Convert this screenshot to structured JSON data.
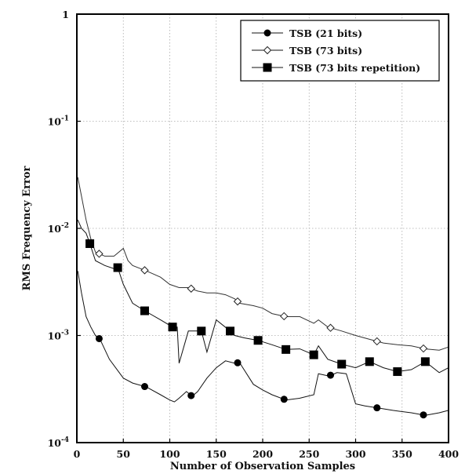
{
  "chart_data": {
    "type": "line",
    "title": "",
    "xlabel": "Number of Observation Samples",
    "ylabel": "RMS Frequency Error",
    "xlim": [
      0,
      400
    ],
    "ylim": [
      0.0001,
      1
    ],
    "yscale": "log",
    "grid": true,
    "legend_position": "top-right",
    "x_ticks": [
      "0",
      "50",
      "100",
      "150",
      "200",
      "250",
      "300",
      "350",
      "400"
    ],
    "y_ticks": [
      {
        "base": "10",
        "exp": "-4"
      },
      {
        "base": "10",
        "exp": "-3"
      },
      {
        "base": "10",
        "exp": "-2"
      },
      {
        "base": "10",
        "exp": "-1"
      },
      {
        "base": "1",
        "exp": ""
      }
    ],
    "series": [
      {
        "name": "TSB (21 bits)",
        "marker": "circle",
        "x": [
          1,
          5,
          10,
          15,
          20,
          25,
          35,
          50,
          60,
          75,
          90,
          100,
          105,
          110,
          118,
          124,
          130,
          140,
          150,
          160,
          170,
          175,
          190,
          200,
          210,
          225,
          240,
          255,
          260,
          270,
          275,
          280,
          290,
          300,
          310,
          325,
          340,
          360,
          375,
          390,
          400
        ],
        "y": [
          0.004,
          0.0025,
          0.0015,
          0.0012,
          0.001,
          0.00092,
          0.0006,
          0.0004,
          0.00036,
          0.00033,
          0.00028,
          0.00025,
          0.00024,
          0.00026,
          0.0003,
          0.00027,
          0.0003,
          0.0004,
          0.0005,
          0.00058,
          0.00055,
          0.00056,
          0.00035,
          0.00031,
          0.00028,
          0.00025,
          0.00026,
          0.00028,
          0.00044,
          0.00042,
          0.00043,
          0.00045,
          0.00044,
          0.00023,
          0.00022,
          0.00021,
          0.0002,
          0.00019,
          0.00018,
          0.00019,
          0.0002
        ]
      },
      {
        "name": "TSB (73 bits)",
        "marker": "diamond",
        "x": [
          1,
          5,
          10,
          15,
          20,
          30,
          40,
          50,
          55,
          60,
          75,
          90,
          100,
          110,
          120,
          130,
          140,
          150,
          160,
          170,
          175,
          190,
          200,
          210,
          225,
          240,
          255,
          260,
          270,
          285,
          300,
          315,
          330,
          345,
          360,
          375,
          390,
          400
        ],
        "y": [
          0.03,
          0.02,
          0.012,
          0.008,
          0.006,
          0.0055,
          0.0055,
          0.0065,
          0.005,
          0.0045,
          0.004,
          0.0035,
          0.003,
          0.0028,
          0.0028,
          0.0026,
          0.0025,
          0.0025,
          0.0024,
          0.0022,
          0.002,
          0.0019,
          0.0018,
          0.0016,
          0.0015,
          0.0015,
          0.0013,
          0.0014,
          0.0012,
          0.0011,
          0.001,
          0.00092,
          0.00085,
          0.00082,
          0.0008,
          0.00075,
          0.00073,
          0.00078
        ]
      },
      {
        "name": "TSB (73 bits repetition)",
        "marker": "square",
        "x": [
          1,
          5,
          10,
          14,
          20,
          30,
          40,
          44,
          50,
          60,
          73,
          90,
          103,
          108,
          110,
          120,
          134,
          140,
          150,
          165,
          170,
          180,
          195,
          210,
          225,
          240,
          255,
          260,
          270,
          285,
          300,
          315,
          330,
          345,
          360,
          375,
          390,
          400
        ],
        "y": [
          0.012,
          0.01,
          0.009,
          0.0072,
          0.005,
          0.0045,
          0.0042,
          0.0043,
          0.003,
          0.002,
          0.0017,
          0.0014,
          0.0012,
          0.0012,
          0.00055,
          0.0011,
          0.0011,
          0.0007,
          0.0014,
          0.0011,
          0.001,
          0.00095,
          0.0009,
          0.00082,
          0.00074,
          0.00075,
          0.00066,
          0.0008,
          0.0006,
          0.00054,
          0.0005,
          0.00057,
          0.0005,
          0.00046,
          0.00048,
          0.00057,
          0.00045,
          0.0005
        ]
      }
    ],
    "marker_points": [
      {
        "series": 0,
        "x": [
          24,
          73,
          123,
          173,
          223,
          273,
          323,
          373
        ]
      },
      {
        "series": 1,
        "x": [
          24,
          73,
          123,
          173,
          223,
          273,
          323,
          373
        ]
      },
      {
        "series": 2,
        "x": [
          14,
          44,
          73,
          103,
          134,
          165,
          195,
          225,
          255,
          285,
          315,
          345,
          375
        ]
      }
    ]
  }
}
